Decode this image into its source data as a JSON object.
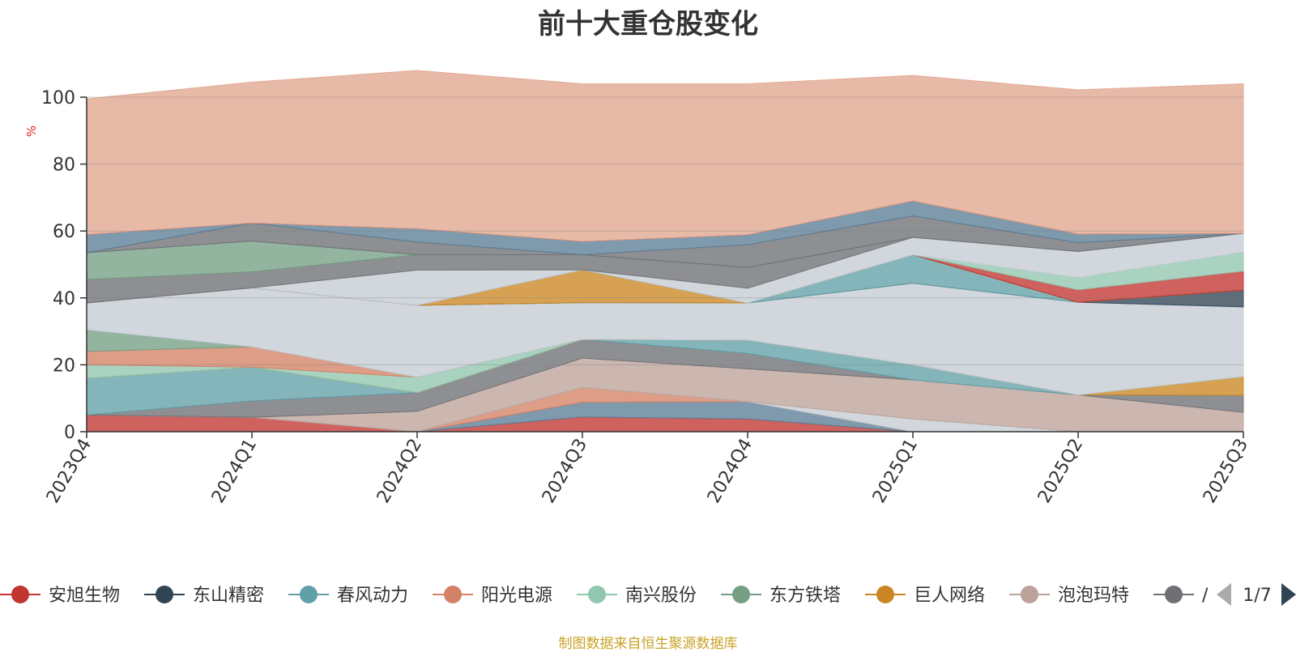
{
  "chart_data": {
    "type": "area",
    "stacked": true,
    "title": "前十大重仓股变化",
    "xlabel": "",
    "ylabel": "%",
    "ylim": [
      0,
      100
    ],
    "yticks": [
      0,
      20,
      40,
      60,
      80,
      100
    ],
    "grid": true,
    "categories": [
      "2023Q4",
      "2024Q1",
      "2024Q2",
      "2024Q3",
      "2024Q4",
      "2025Q1",
      "2025Q2",
      "2025Q3"
    ],
    "series": [
      {
        "name": "安旭生物",
        "color": "#c23531",
        "values": [
          5.0,
          4.3,
          0,
          4.4,
          3.8,
          0,
          0,
          0
        ]
      },
      {
        "name": "",
        "color": "#5b7d96",
        "values": [
          0,
          0,
          0,
          4.4,
          5.2,
          0,
          0,
          0
        ]
      },
      {
        "name": "",
        "color": "#d48265",
        "values": [
          0,
          0,
          0,
          4.4,
          0,
          0,
          0,
          0
        ]
      },
      {
        "name": "",
        "color": "#c4ccd3",
        "values": [
          0,
          0,
          0,
          0,
          0,
          3.8,
          0,
          0
        ]
      },
      {
        "name": "泡泡玛特",
        "color": "#bda29a",
        "values": [
          0,
          0,
          6.1,
          8.8,
          9.8,
          11.7,
          11.0,
          5.8
        ]
      },
      {
        "name": "",
        "color": "#6e7074",
        "values": [
          0,
          4.9,
          5.6,
          5.6,
          4.6,
          0,
          0,
          5.1
        ]
      },
      {
        "name": "春风动力",
        "color": "#61a0a8",
        "values": [
          11.0,
          10.1,
          0,
          0,
          4.0,
          4.5,
          0,
          0
        ]
      },
      {
        "name": "巨人网络",
        "color": "#ca8622",
        "values": [
          0,
          0,
          0,
          0,
          0,
          0,
          0,
          5.6
        ]
      },
      {
        "name": "南兴股份",
        "color": "#91c7ae",
        "values": [
          4.0,
          0,
          4.6,
          0,
          0,
          0,
          0,
          0
        ]
      },
      {
        "name": "阳光电源",
        "color": "#d48265",
        "values": [
          4.0,
          6.1,
          0,
          0,
          0,
          0,
          0,
          0
        ]
      },
      {
        "name": "东方铁塔",
        "color": "#749f83",
        "values": [
          6.5,
          0,
          0,
          0,
          0,
          0,
          0,
          0
        ]
      },
      {
        "name": "",
        "color": "#c4ccd3",
        "values": [
          8.0,
          17.6,
          21.5,
          11.0,
          11.1,
          24.4,
          27.7,
          20.8
        ]
      },
      {
        "name": "东山精密",
        "color": "#2f4554",
        "values": [
          0,
          0,
          0,
          0,
          0,
          0,
          0,
          5.0
        ]
      },
      {
        "name": "",
        "color": "#61a0a8",
        "values": [
          0,
          0,
          0,
          0,
          0,
          8.5,
          0,
          0
        ]
      },
      {
        "name": "",
        "color": "#ca8622",
        "values": [
          0,
          0,
          0,
          9.8,
          0,
          0,
          0,
          0
        ]
      },
      {
        "name": "",
        "color": "#c23531",
        "values": [
          0,
          0,
          0,
          0,
          0,
          0,
          3.7,
          5.7
        ]
      },
      {
        "name": "",
        "color": "#91c7ae",
        "values": [
          0,
          0,
          0,
          0,
          0,
          0,
          3.7,
          5.7
        ]
      },
      {
        "name": "",
        "color": "#c4ccd3",
        "values": [
          0,
          0,
          10.5,
          0,
          4.4,
          5.2,
          7.8,
          5.6
        ]
      },
      {
        "name": "",
        "color": "#6e7074",
        "values": [
          7.0,
          4.8,
          4.6,
          4.5,
          6.2,
          0,
          0,
          0
        ]
      },
      {
        "name": "",
        "color": "#749f83",
        "values": [
          8.0,
          9.2,
          0,
          0,
          0,
          0,
          0,
          0
        ]
      },
      {
        "name": "",
        "color": "#6e7074",
        "values": [
          0,
          5.4,
          3.8,
          0,
          6.8,
          6.4,
          2.6,
          0
        ]
      },
      {
        "name": "",
        "color": "#5b7d96",
        "values": [
          5.5,
          0,
          4.0,
          4.0,
          3.0,
          4.5,
          2.6,
          0
        ]
      },
      {
        "name": "",
        "color": "#c23531",
        "values": [
          0,
          0,
          0,
          0,
          0,
          0,
          0,
          0
        ]
      },
      {
        "name": "",
        "color": "#e0a68f",
        "values": [
          40.5,
          42.1,
          47.3,
          47.1,
          45.1,
          37.5,
          43.1,
          44.7
        ]
      }
    ],
    "legend": {
      "items": [
        {
          "name": "安旭生物",
          "color": "#c23531"
        },
        {
          "name": "东山精密",
          "color": "#2f4554"
        },
        {
          "name": "春风动力",
          "color": "#61a0a8"
        },
        {
          "name": "阳光电源",
          "color": "#d48265"
        },
        {
          "name": "南兴股份",
          "color": "#91c7ae"
        },
        {
          "name": "东方铁塔",
          "color": "#749f83"
        },
        {
          "name": "巨人网络",
          "color": "#ca8622"
        },
        {
          "name": "泡泡玛特",
          "color": "#bda29a"
        },
        {
          "name": "/",
          "color": "#6e7074"
        }
      ],
      "page": "1/7",
      "placement": "bottom"
    }
  },
  "source_note": "制图数据来自恒生聚源数据库"
}
